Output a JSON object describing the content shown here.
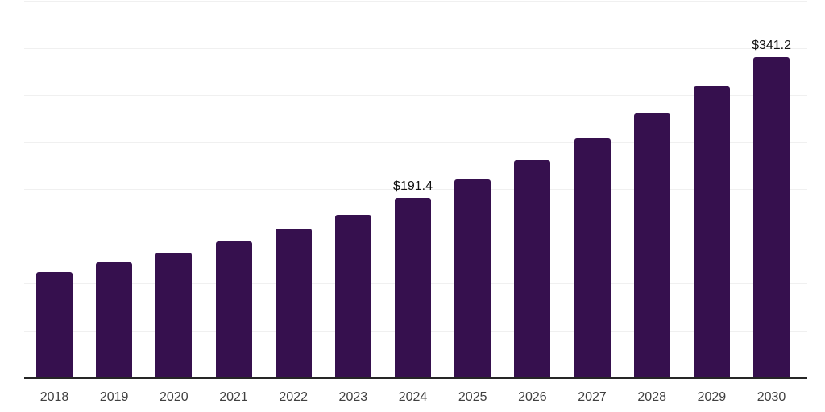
{
  "chart_data": {
    "type": "bar",
    "title": "",
    "xlabel": "",
    "ylabel": "",
    "categories": [
      "2018",
      "2019",
      "2020",
      "2021",
      "2022",
      "2023",
      "2024",
      "2025",
      "2026",
      "2027",
      "2028",
      "2029",
      "2030"
    ],
    "values": [
      112.8,
      123.2,
      133.4,
      145.5,
      158.9,
      173.8,
      191.4,
      210.9,
      231.5,
      255.0,
      281.5,
      310.5,
      341.2
    ],
    "value_labels": {
      "2024": "$191.4",
      "2030": "$341.2"
    },
    "ylim": [
      0,
      400
    ],
    "gridline_step": 50,
    "grid": "horizontal-only",
    "legend": "none",
    "y_axis_labels_visible": false,
    "colors": {
      "bar": "#36104E",
      "axis_line": "#262626",
      "gridline": "#F0F0F0",
      "tick_label": "#404040",
      "value_label": "#111111",
      "background": "#FFFFFF"
    }
  }
}
